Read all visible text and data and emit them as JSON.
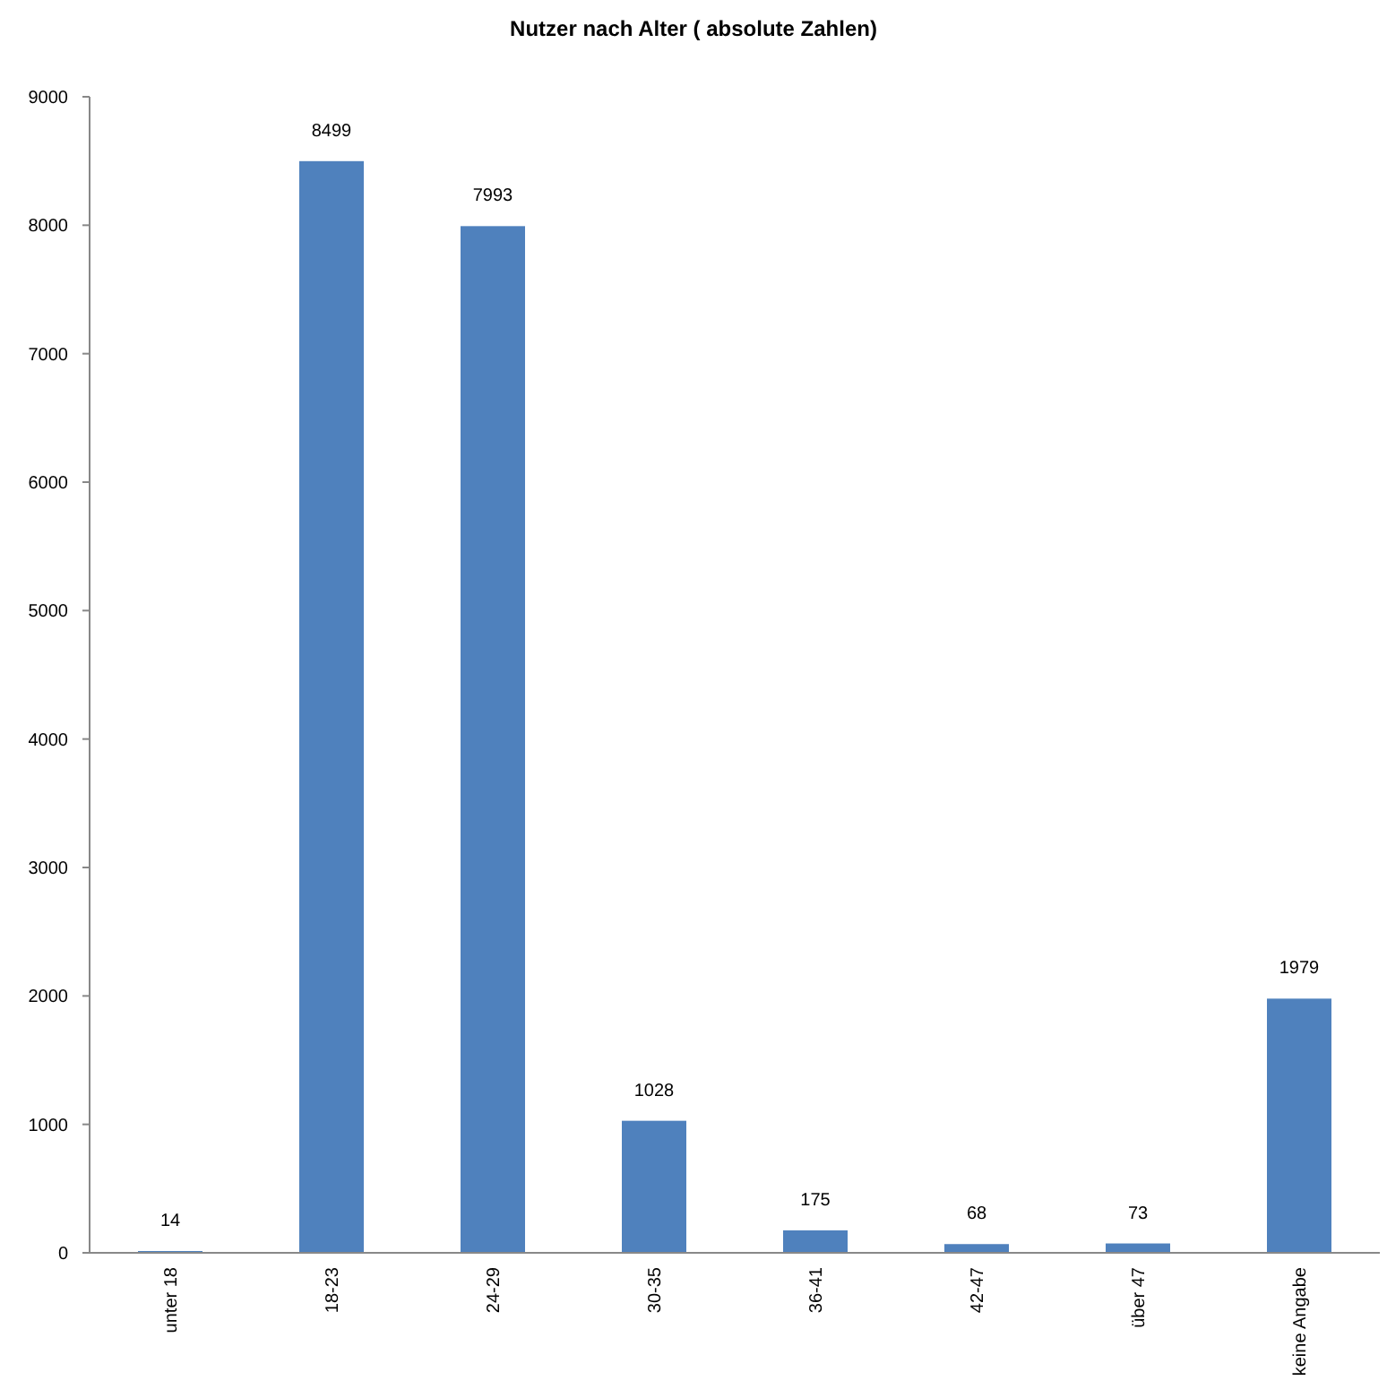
{
  "chart_data": {
    "type": "bar",
    "title": "Nutzer nach Alter ( absolute Zahlen)",
    "categories": [
      "unter 18",
      "18-23",
      "24-29",
      "30-35",
      "36-41",
      "42-47",
      "über 47",
      "keine Angabe"
    ],
    "values": [
      14,
      8499,
      7993,
      1028,
      175,
      68,
      73,
      1979
    ],
    "color": "#4f81bd",
    "ylim": [
      0,
      9000
    ],
    "yticks": [
      0,
      1000,
      2000,
      3000,
      4000,
      5000,
      6000,
      7000,
      8000,
      9000
    ],
    "grid": false,
    "data_labels": true
  }
}
